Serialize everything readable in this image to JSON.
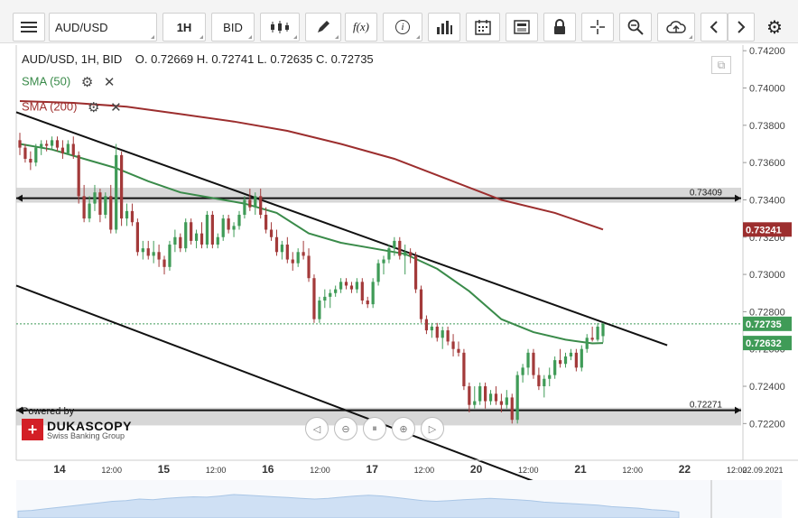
{
  "toolbar": {
    "symbol": "AUD/USD",
    "timeframe": "1H",
    "side": "BID",
    "icons": [
      "menu-icon",
      "candlestick-icon",
      "pencil-icon",
      "function-icon",
      "info-icon",
      "bar-chart-icon",
      "calendar-icon",
      "news-icon",
      "lock-icon",
      "crosshair-icon",
      "zoom-icon",
      "cloud-upload-icon",
      "chevron-left-icon",
      "chevron-right-icon",
      "gear-icon"
    ],
    "fx_label": "f(x)",
    "info_label": "i"
  },
  "ohlc": {
    "line": "AUD/USD, 1H, BID",
    "o_label": "O.",
    "o": "0.72669",
    "h_label": "H.",
    "h": "0.72741",
    "l_label": "L.",
    "l": "0.72635",
    "c_label": "C.",
    "c": "0.72735"
  },
  "indicators": [
    {
      "label": "SMA (50)",
      "color": "#3a8b4a"
    },
    {
      "label": "SMA (200)",
      "color": "#a0312f"
    }
  ],
  "branding": {
    "powered_by": "Powered by",
    "name": "DUKASCOPY",
    "tagline": "Swiss Banking Group"
  },
  "nav_icons": [
    "nav-left-icon",
    "zoom-out-icon",
    "fit-icon",
    "zoom-in-icon",
    "nav-right-icon"
  ],
  "colors": {
    "up_candle": "#3f9b57",
    "down_candle": "#a33a3a",
    "sma50": "#3a8b4a",
    "sma200": "#9c2e2e",
    "price_badge": "#3f9b57",
    "sma200_badge": "#9c2e2e",
    "level_band": "#c9c9c9",
    "trendline": "#111111"
  },
  "chart_data": {
    "type": "candlestick",
    "title": "AUD/USD, 1H, BID",
    "ylim": [
      0.721,
      0.7423
    ],
    "y_ticks": [
      "0.74200",
      "0.74000",
      "0.73800",
      "0.73600",
      "0.73400",
      "0.73200",
      "0.73000",
      "0.72800",
      "0.72600",
      "0.72400",
      "0.72200"
    ],
    "x_tick_labels": [
      "14",
      "12:00",
      "15",
      "12:00",
      "16",
      "12:00",
      "17",
      "12:00",
      "20",
      "12:00",
      "21",
      "12:00",
      "22",
      "12:00",
      "22.09.2021"
    ],
    "bold_x_ticks": [
      "14",
      "15",
      "16",
      "17",
      "20",
      "21",
      "22"
    ],
    "candles": [
      [
        0.7372,
        0.7376,
        0.7364,
        0.7368
      ],
      [
        0.7368,
        0.737,
        0.736,
        0.7362
      ],
      [
        0.7362,
        0.7366,
        0.7356,
        0.736
      ],
      [
        0.736,
        0.737,
        0.7358,
        0.7368
      ],
      [
        0.7368,
        0.7372,
        0.7364,
        0.737
      ],
      [
        0.737,
        0.7372,
        0.7366,
        0.7369
      ],
      [
        0.7369,
        0.7374,
        0.7367,
        0.7372
      ],
      [
        0.7372,
        0.7374,
        0.7366,
        0.7368
      ],
      [
        0.7368,
        0.7372,
        0.7362,
        0.7365
      ],
      [
        0.7365,
        0.7372,
        0.7364,
        0.737
      ],
      [
        0.737,
        0.7374,
        0.7362,
        0.7364
      ],
      [
        0.7364,
        0.7366,
        0.7338,
        0.7342
      ],
      [
        0.7342,
        0.7348,
        0.7328,
        0.733
      ],
      [
        0.733,
        0.7342,
        0.7328,
        0.7338
      ],
      [
        0.7338,
        0.7348,
        0.7334,
        0.7344
      ],
      [
        0.7344,
        0.7346,
        0.7328,
        0.7332
      ],
      [
        0.7332,
        0.7344,
        0.733,
        0.7342
      ],
      [
        0.7342,
        0.7348,
        0.7322,
        0.7324
      ],
      [
        0.7324,
        0.737,
        0.7322,
        0.7364
      ],
      [
        0.7364,
        0.7366,
        0.7326,
        0.733
      ],
      [
        0.733,
        0.7338,
        0.7326,
        0.7334
      ],
      [
        0.7334,
        0.7338,
        0.7326,
        0.7328
      ],
      [
        0.7328,
        0.733,
        0.731,
        0.7312
      ],
      [
        0.7312,
        0.7318,
        0.7308,
        0.7314
      ],
      [
        0.7314,
        0.7318,
        0.7308,
        0.731
      ],
      [
        0.731,
        0.7318,
        0.7306,
        0.7312
      ],
      [
        0.7312,
        0.7316,
        0.7304,
        0.7308
      ],
      [
        0.7308,
        0.731,
        0.73,
        0.7304
      ],
      [
        0.7304,
        0.7318,
        0.7302,
        0.7316
      ],
      [
        0.7316,
        0.7324,
        0.7312,
        0.732
      ],
      [
        0.732,
        0.7322,
        0.7312,
        0.7314
      ],
      [
        0.7314,
        0.733,
        0.7312,
        0.7328
      ],
      [
        0.7328,
        0.733,
        0.7316,
        0.7318
      ],
      [
        0.7318,
        0.7324,
        0.7314,
        0.7322
      ],
      [
        0.7322,
        0.7328,
        0.7314,
        0.7316
      ],
      [
        0.7316,
        0.7334,
        0.7314,
        0.7332
      ],
      [
        0.7332,
        0.7334,
        0.7314,
        0.7316
      ],
      [
        0.7316,
        0.7322,
        0.7314,
        0.732
      ],
      [
        0.732,
        0.7332,
        0.7318,
        0.733
      ],
      [
        0.733,
        0.7332,
        0.7322,
        0.7324
      ],
      [
        0.7324,
        0.7328,
        0.732,
        0.7326
      ],
      [
        0.7326,
        0.7334,
        0.7324,
        0.7332
      ],
      [
        0.7332,
        0.7342,
        0.733,
        0.734
      ],
      [
        0.734,
        0.7346,
        0.7334,
        0.7336
      ],
      [
        0.7336,
        0.7344,
        0.7332,
        0.7342
      ],
      [
        0.7342,
        0.7346,
        0.733,
        0.7332
      ],
      [
        0.7332,
        0.7336,
        0.7322,
        0.7324
      ],
      [
        0.7324,
        0.7328,
        0.7318,
        0.732
      ],
      [
        0.732,
        0.7324,
        0.731,
        0.7312
      ],
      [
        0.7312,
        0.7318,
        0.7308,
        0.7316
      ],
      [
        0.7316,
        0.732,
        0.7306,
        0.7308
      ],
      [
        0.7308,
        0.7312,
        0.7302,
        0.7306
      ],
      [
        0.7306,
        0.7314,
        0.7304,
        0.7312
      ],
      [
        0.7312,
        0.7318,
        0.7308,
        0.731
      ],
      [
        0.731,
        0.7314,
        0.7296,
        0.7298
      ],
      [
        0.7298,
        0.73,
        0.7274,
        0.7276
      ],
      [
        0.7276,
        0.7288,
        0.7274,
        0.7286
      ],
      [
        0.7286,
        0.7292,
        0.7282,
        0.7288
      ],
      [
        0.7288,
        0.7292,
        0.7282,
        0.729
      ],
      [
        0.729,
        0.7294,
        0.7288,
        0.7292
      ],
      [
        0.7292,
        0.7298,
        0.729,
        0.7296
      ],
      [
        0.7296,
        0.7298,
        0.7292,
        0.7294
      ],
      [
        0.7294,
        0.7296,
        0.729,
        0.7292
      ],
      [
        0.7292,
        0.7298,
        0.729,
        0.7296
      ],
      [
        0.7296,
        0.7298,
        0.7284,
        0.7286
      ],
      [
        0.7286,
        0.7288,
        0.7282,
        0.7284
      ],
      [
        0.7284,
        0.7298,
        0.7282,
        0.7296
      ],
      [
        0.7296,
        0.7308,
        0.7294,
        0.7306
      ],
      [
        0.7306,
        0.731,
        0.73,
        0.7308
      ],
      [
        0.7308,
        0.7316,
        0.7306,
        0.7314
      ],
      [
        0.7314,
        0.732,
        0.731,
        0.7318
      ],
      [
        0.7318,
        0.732,
        0.7308,
        0.731
      ],
      [
        0.731,
        0.7316,
        0.73,
        0.7312
      ],
      [
        0.7312,
        0.7314,
        0.7306,
        0.731
      ],
      [
        0.731,
        0.7312,
        0.729,
        0.7292
      ],
      [
        0.7292,
        0.7294,
        0.7274,
        0.7276
      ],
      [
        0.7276,
        0.7278,
        0.7268,
        0.727
      ],
      [
        0.727,
        0.7274,
        0.7266,
        0.7272
      ],
      [
        0.7272,
        0.7274,
        0.7264,
        0.7266
      ],
      [
        0.7266,
        0.7272,
        0.726,
        0.727
      ],
      [
        0.727,
        0.7272,
        0.7262,
        0.7264
      ],
      [
        0.7264,
        0.7268,
        0.7256,
        0.726
      ],
      [
        0.726,
        0.7264,
        0.7256,
        0.7258
      ],
      [
        0.7258,
        0.726,
        0.7238,
        0.724
      ],
      [
        0.724,
        0.7242,
        0.7226,
        0.723
      ],
      [
        0.723,
        0.724,
        0.7228,
        0.7232
      ],
      [
        0.7232,
        0.7242,
        0.723,
        0.724
      ],
      [
        0.724,
        0.7242,
        0.7228,
        0.7232
      ],
      [
        0.7232,
        0.7238,
        0.723,
        0.7236
      ],
      [
        0.7236,
        0.724,
        0.723,
        0.7232
      ],
      [
        0.7232,
        0.7236,
        0.7226,
        0.723
      ],
      [
        0.723,
        0.7238,
        0.7228,
        0.7234
      ],
      [
        0.7234,
        0.7236,
        0.722,
        0.7222
      ],
      [
        0.7222,
        0.7248,
        0.722,
        0.7246
      ],
      [
        0.7246,
        0.7252,
        0.7242,
        0.725
      ],
      [
        0.725,
        0.726,
        0.7246,
        0.7258
      ],
      [
        0.7258,
        0.726,
        0.7244,
        0.7246
      ],
      [
        0.7246,
        0.725,
        0.7238,
        0.724
      ],
      [
        0.724,
        0.7246,
        0.7234,
        0.7244
      ],
      [
        0.7244,
        0.725,
        0.724,
        0.7246
      ],
      [
        0.7246,
        0.7256,
        0.7244,
        0.7254
      ],
      [
        0.7254,
        0.726,
        0.725,
        0.7252
      ],
      [
        0.7252,
        0.7258,
        0.725,
        0.7256
      ],
      [
        0.7256,
        0.726,
        0.7254,
        0.7258
      ],
      [
        0.7258,
        0.726,
        0.7248,
        0.725
      ],
      [
        0.725,
        0.7262,
        0.7248,
        0.726
      ],
      [
        0.726,
        0.7268,
        0.7258,
        0.7266
      ],
      [
        0.7266,
        0.7272,
        0.7264,
        0.7265
      ],
      [
        0.7265,
        0.7274,
        0.7264,
        0.7272
      ],
      [
        0.72669,
        0.72741,
        0.72635,
        0.72735
      ]
    ],
    "sma50": [
      [
        0,
        0.737
      ],
      [
        6,
        0.7367
      ],
      [
        12,
        0.7362
      ],
      [
        18,
        0.7357
      ],
      [
        24,
        0.735
      ],
      [
        30,
        0.7344
      ],
      [
        36,
        0.7341
      ],
      [
        42,
        0.7338
      ],
      [
        48,
        0.7333
      ],
      [
        54,
        0.7322
      ],
      [
        60,
        0.7317
      ],
      [
        66,
        0.7314
      ],
      [
        72,
        0.7311
      ],
      [
        78,
        0.7303
      ],
      [
        84,
        0.7291
      ],
      [
        90,
        0.7276
      ],
      [
        96,
        0.7269
      ],
      [
        102,
        0.7265
      ],
      [
        107,
        0.7263
      ],
      [
        109,
        0.72632
      ]
    ],
    "sma200": [
      [
        0,
        0.7393
      ],
      [
        10,
        0.7392
      ],
      [
        20,
        0.739
      ],
      [
        30,
        0.7386
      ],
      [
        40,
        0.7382
      ],
      [
        50,
        0.7377
      ],
      [
        60,
        0.737
      ],
      [
        70,
        0.7362
      ],
      [
        80,
        0.7351
      ],
      [
        90,
        0.734
      ],
      [
        100,
        0.7333
      ],
      [
        109,
        0.73241
      ]
    ],
    "trendlines": [
      {
        "from": [
          0,
          0.7387
        ],
        "to": [
          121,
          0.7262
        ]
      },
      {
        "from": [
          0,
          0.7294
        ],
        "to": [
          109,
          0.7175
        ]
      }
    ],
    "levels": [
      {
        "value": 0.73409,
        "label": "0.73409",
        "band": [
          0.73385,
          0.73465
        ]
      },
      {
        "value": 0.72271,
        "label": "0.72271",
        "band": [
          0.7219,
          0.72285
        ]
      }
    ],
    "last_price": {
      "value": 0.72735,
      "label": "0.72735"
    },
    "badges": [
      {
        "value": 0.73241,
        "label": "0.73241",
        "kind": "sma200"
      },
      {
        "value": 0.72632,
        "label": "0.72632",
        "kind": "sma50"
      }
    ],
    "minimap": [
      0.18,
      0.2,
      0.24,
      0.28,
      0.32,
      0.36,
      0.4,
      0.44,
      0.46,
      0.5,
      0.48,
      0.52,
      0.54,
      0.56,
      0.55,
      0.58,
      0.62,
      0.6,
      0.58,
      0.56,
      0.54,
      0.52,
      0.5,
      0.52,
      0.55,
      0.58,
      0.6,
      0.58,
      0.54,
      0.5,
      0.46,
      0.44,
      0.46,
      0.48,
      0.5,
      0.52,
      0.5,
      0.48,
      0.46,
      0.42,
      0.4,
      0.38,
      0.36,
      0.34,
      0.3,
      0.28,
      0.26,
      0.22,
      0.2,
      0.16
    ]
  }
}
